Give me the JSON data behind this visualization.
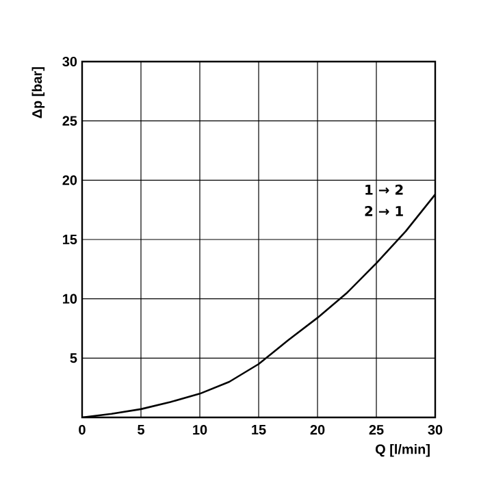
{
  "chart_data": {
    "type": "line",
    "xlabel": "Q [l/min]",
    "ylabel": "Δp [bar]",
    "x": [
      0,
      2.5,
      5,
      7.5,
      10,
      12.5,
      15,
      17.5,
      20,
      22.5,
      25,
      27.5,
      30
    ],
    "series": [
      {
        "color": "#000000",
        "values": [
          0,
          0.3,
          0.7,
          1.3,
          2.0,
          3.0,
          4.5,
          6.5,
          8.4,
          10.5,
          13,
          15.7,
          18.8
        ]
      }
    ],
    "xlim": [
      0,
      30
    ],
    "ylim": [
      0,
      30
    ],
    "xticks": [
      0,
      5,
      10,
      15,
      20,
      25,
      30
    ],
    "yticks": [
      {
        "value": 0,
        "label": null
      },
      5,
      10,
      15,
      20,
      25,
      30
    ],
    "grid": true,
    "marker": "none",
    "line_style": "solid",
    "annotations": [
      "1 → 2",
      "2 → 1"
    ]
  }
}
